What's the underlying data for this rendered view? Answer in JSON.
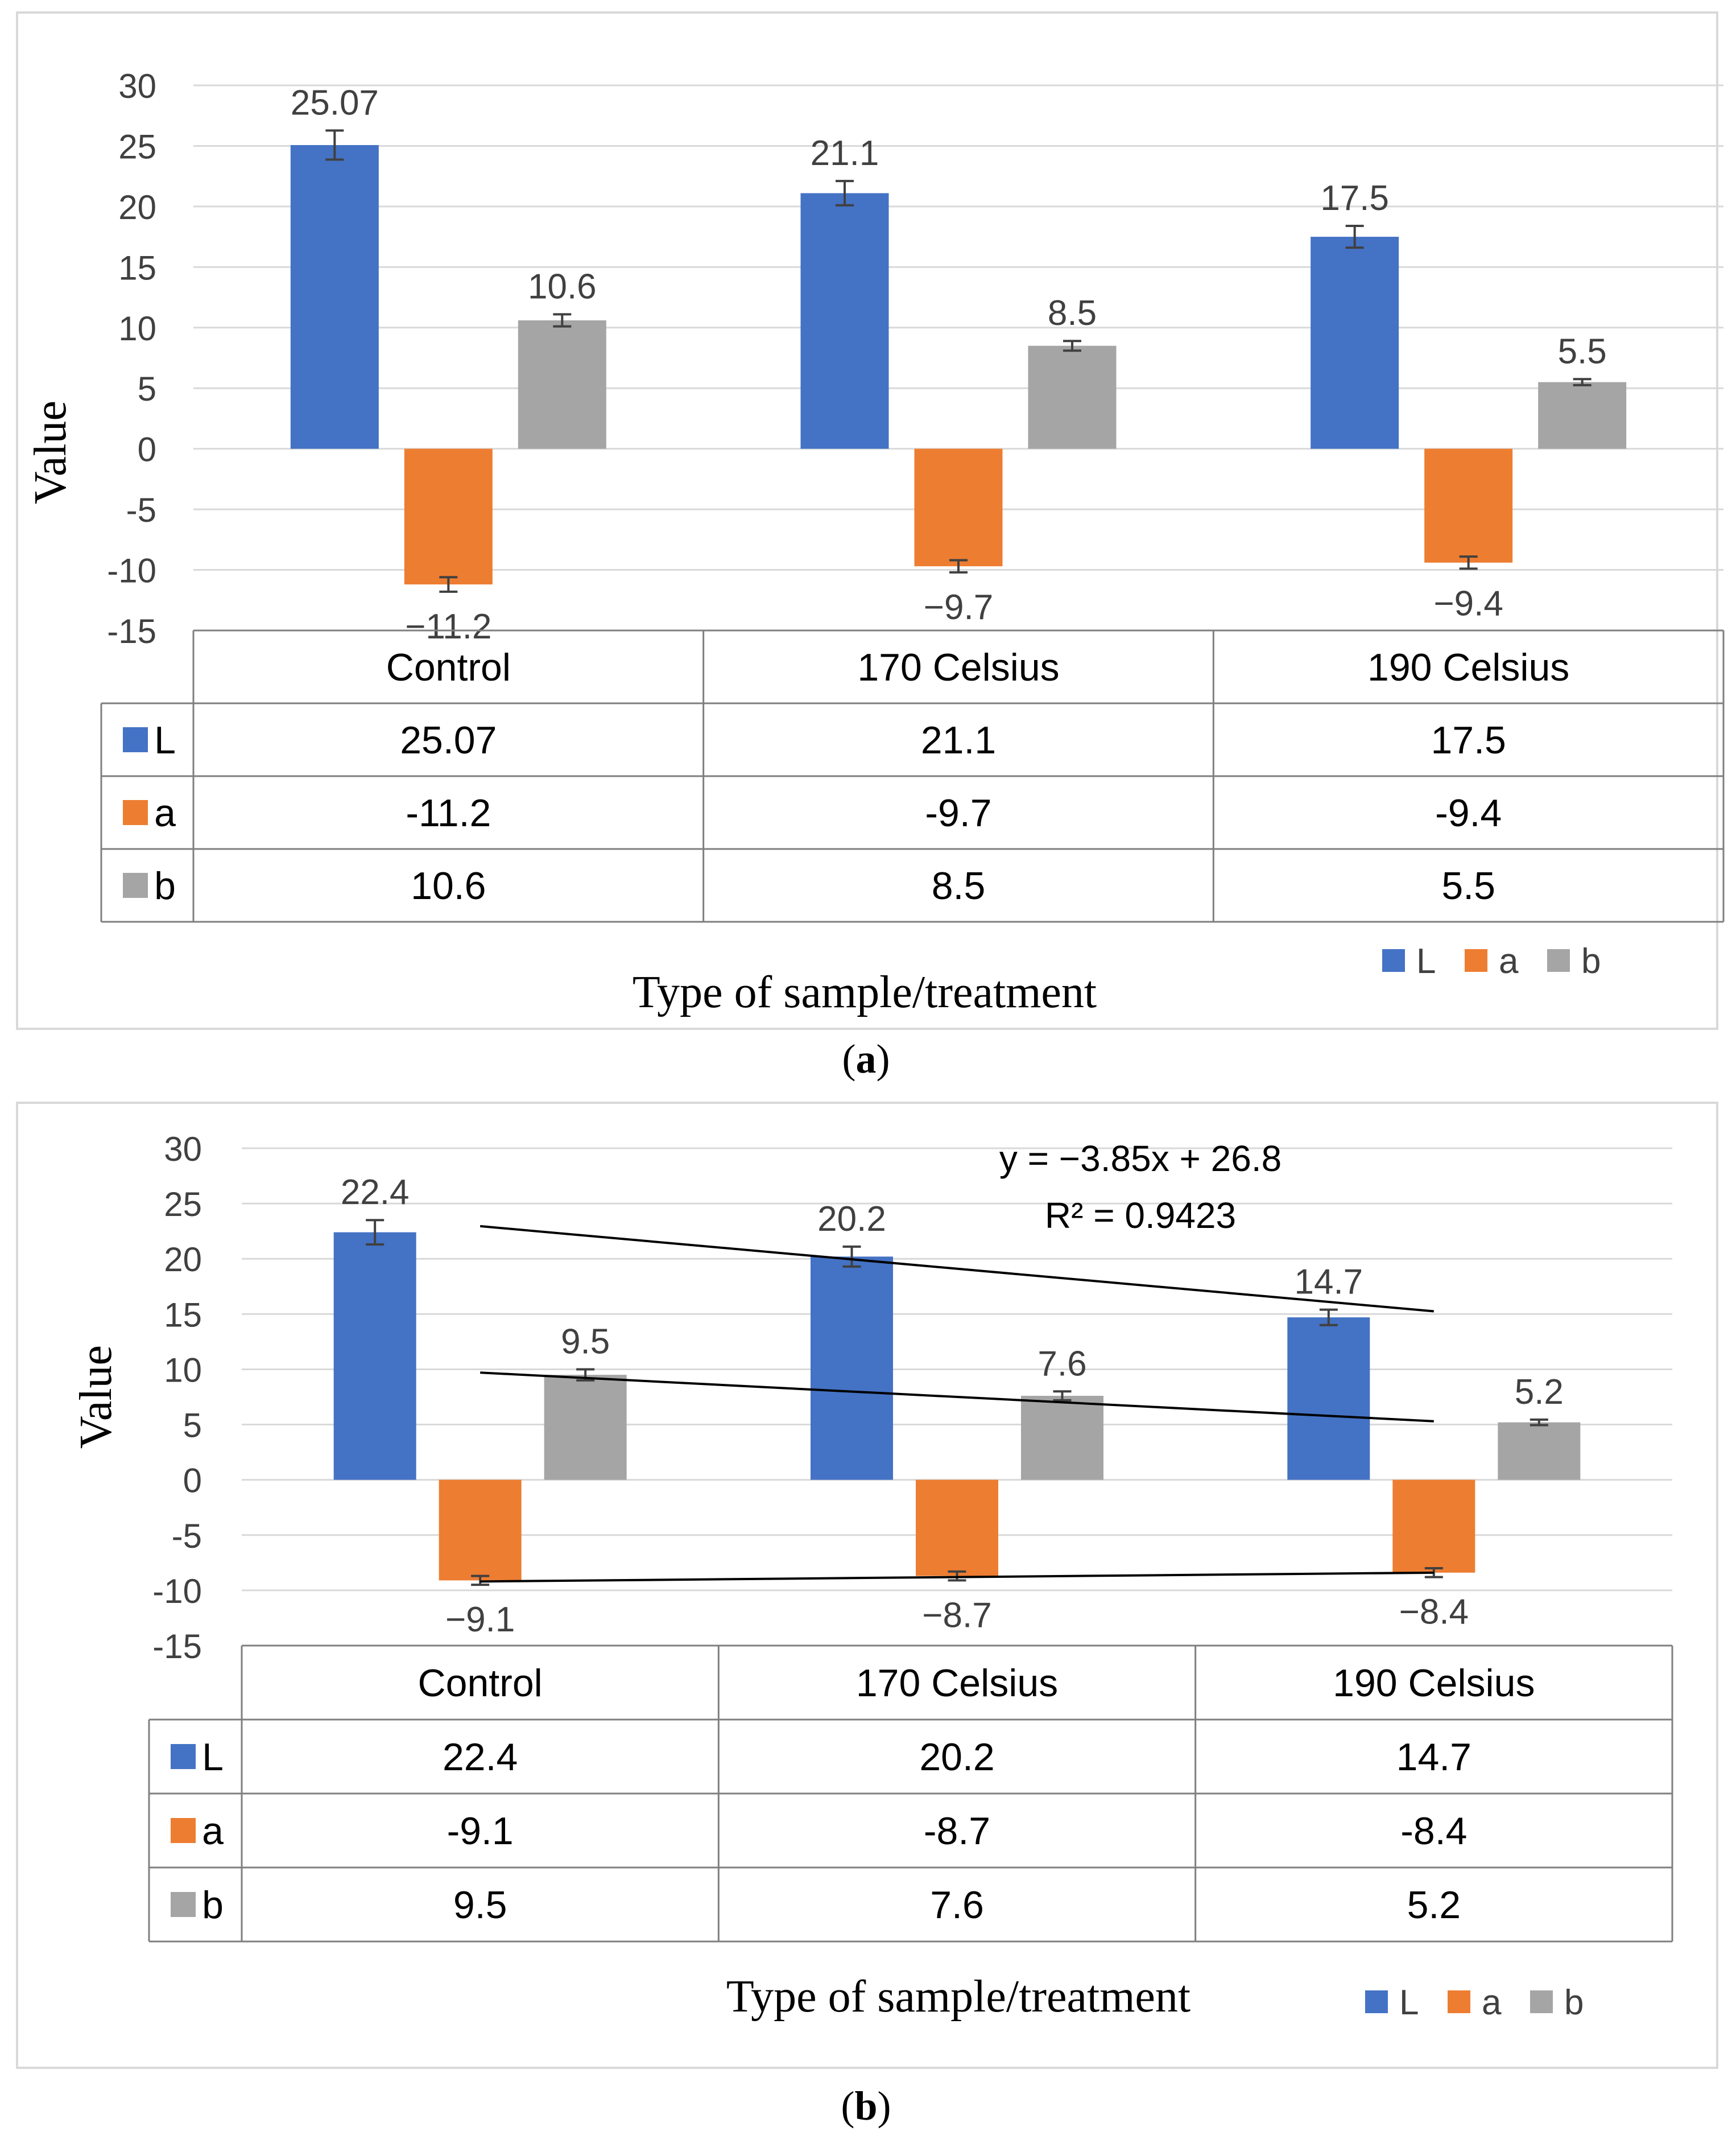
{
  "chart_data": [
    {
      "type": "bar",
      "panel_label": "a",
      "categories": [
        "Control",
        "170 Celsius",
        "190 Celsius"
      ],
      "series": [
        {
          "name": "L",
          "values": [
            25.07,
            21.1,
            17.5
          ],
          "errors": [
            1.2,
            1.0,
            0.9
          ],
          "color": "#4472c4"
        },
        {
          "name": "a",
          "values": [
            -11.2,
            -9.7,
            -9.4
          ],
          "errors": [
            0.6,
            0.5,
            0.5
          ],
          "color": "#ed7d31"
        },
        {
          "name": "b",
          "values": [
            10.6,
            8.5,
            5.5
          ],
          "errors": [
            0.5,
            0.4,
            0.25
          ],
          "color": "#a5a5a5"
        }
      ],
      "data_labels": [
        [
          "25.07",
          "21.1",
          "17.5"
        ],
        [
          "−11.2",
          "−9.7",
          "−9.4"
        ],
        [
          "10.6",
          "8.5",
          "5.5"
        ]
      ],
      "table_values": [
        [
          "25.07",
          "21.1",
          "17.5"
        ],
        [
          "-11.2",
          "-9.7",
          "-9.4"
        ],
        [
          "10.6",
          "8.5",
          "5.5"
        ]
      ],
      "ylabel": "Value",
      "xlabel": "Type of sample/treatment",
      "ylim": [
        -15,
        30
      ],
      "yticks": [
        "30",
        "25",
        "20",
        "15",
        "10",
        "5",
        "0",
        "-5",
        "-10",
        "-15"
      ],
      "grid": true,
      "legend_position": "bottom-right"
    },
    {
      "type": "bar",
      "panel_label": "b",
      "categories": [
        "Control",
        "170 Celsius",
        "190 Celsius"
      ],
      "series": [
        {
          "name": "L",
          "values": [
            22.4,
            20.2,
            14.7
          ],
          "errors": [
            1.1,
            0.9,
            0.7
          ],
          "color": "#4472c4"
        },
        {
          "name": "a",
          "values": [
            -9.1,
            -8.7,
            -8.4
          ],
          "errors": [
            0.4,
            0.4,
            0.4
          ],
          "color": "#ed7d31"
        },
        {
          "name": "b",
          "values": [
            9.5,
            7.6,
            5.2
          ],
          "errors": [
            0.5,
            0.4,
            0.25
          ],
          "color": "#a5a5a5"
        }
      ],
      "data_labels": [
        [
          "22.4",
          "20.2",
          "14.7"
        ],
        [
          "−9.1",
          "−8.7",
          "−8.4"
        ],
        [
          "9.5",
          "7.6",
          "5.2"
        ]
      ],
      "table_values": [
        [
          "22.4",
          "20.2",
          "14.7"
        ],
        [
          "-9.1",
          "-8.7",
          "-8.4"
        ],
        [
          "9.5",
          "7.6",
          "5.2"
        ]
      ],
      "trendlines": [
        {
          "x": [
            1,
            3
          ],
          "y": [
            22.95,
            15.25
          ]
        },
        {
          "x": [
            1,
            3
          ],
          "y": [
            9.7,
            5.3
          ]
        },
        {
          "x": [
            1,
            3
          ],
          "y": [
            -9.2,
            -8.4
          ]
        }
      ],
      "trend_equation": "y = −3.85x + 26.8",
      "trend_r2": "R² = 0.9423",
      "ylabel": "Value",
      "xlabel": "Type of sample/treatment",
      "ylim": [
        -15,
        30
      ],
      "yticks": [
        "30",
        "25",
        "20",
        "15",
        "10",
        "5",
        "0",
        "-5",
        "-10",
        "-15"
      ],
      "grid": true,
      "legend_position": "bottom-right"
    }
  ],
  "captions": [
    {
      "open": "(",
      "label": "a",
      "close": ")"
    },
    {
      "open": "(",
      "label": "b",
      "close": ")"
    }
  ]
}
